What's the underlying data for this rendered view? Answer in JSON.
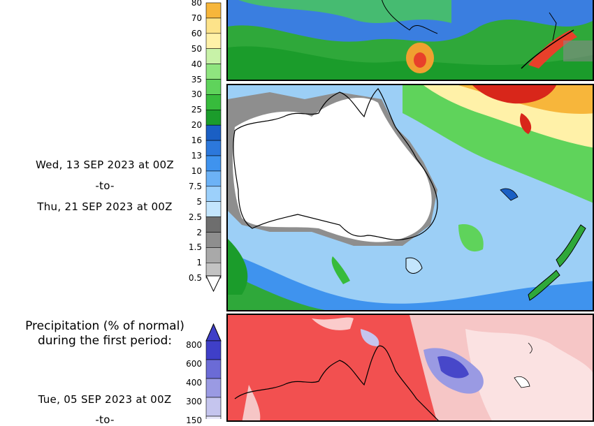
{
  "top_colorbar": {
    "labels": [
      "80",
      "70",
      "60",
      "50",
      "40",
      "35",
      "30",
      "25",
      "20",
      "16",
      "13",
      "10",
      "7.5",
      "5",
      "2.5",
      "2",
      "1.5",
      "1",
      "0.5"
    ],
    "colors": [
      "#f7b63b",
      "#fde38a",
      "#fff1a8",
      "#c8f2a8",
      "#8fe57f",
      "#5fd35b",
      "#37bb3c",
      "#1b9c2b",
      "#1a5fc4",
      "#2c78dc",
      "#3f93ee",
      "#6cb2f6",
      "#9cd0fb",
      "#c3e5fd",
      "#6e6e6e",
      "#8e8e8e",
      "#a9a9a9",
      "#c3c3c3"
    ]
  },
  "period_one": {
    "start": "Wed, 13 SEP 2023 at 00Z",
    "to": "-to-",
    "end": "Thu, 21 SEP 2023 at 00Z"
  },
  "percent_section": {
    "title_line1": "Precipitation (% of normal)",
    "title_line2": "during the first period:",
    "labels": [
      "800",
      "600",
      "400",
      "300",
      "150"
    ],
    "colors": [
      "#3f3fc8",
      "#6b6bd6",
      "#9a9ae3",
      "#c5c5ee",
      "#e6e6f8"
    ]
  },
  "period_two": {
    "start": "Tue, 05 SEP 2023 at 00Z",
    "to": "-to-"
  },
  "map_colors": {
    "land_outline": "#000000",
    "ocean_blue": "#9ccff6",
    "deficit_red": "#f25050",
    "surplus_blue": "#4747c9"
  }
}
